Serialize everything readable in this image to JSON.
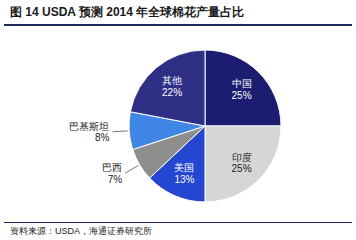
{
  "chart_data": {
    "type": "pie",
    "title": "图 14 USDA 预测 2014 年全球棉花产量占比",
    "caption": "资料来源：USDA，海通证券研究所",
    "categories": [
      "中国",
      "印度",
      "美国",
      "巴西",
      "巴基斯坦",
      "其他"
    ],
    "values": [
      25,
      25,
      13,
      7,
      8,
      22
    ],
    "value_labels": [
      "25%",
      "25%",
      "13%",
      "7%",
      "8%",
      "22%"
    ],
    "colors": [
      "#1c1c70",
      "#d6d6d6",
      "#2446d0",
      "#8e8e8e",
      "#3f86e6",
      "#2f2f86"
    ],
    "data_labels": true
  }
}
